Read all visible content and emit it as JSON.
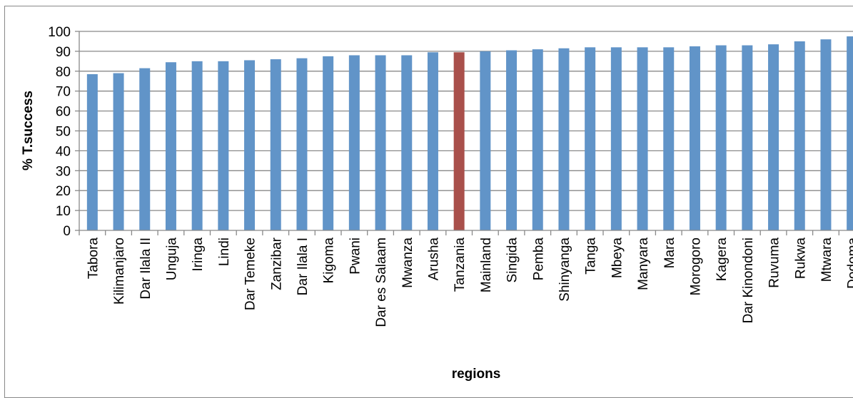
{
  "chart_data": {
    "type": "bar",
    "title": "",
    "xlabel": "regions",
    "ylabel": "% T.success",
    "ylim": [
      0,
      100
    ],
    "yticks": [
      0,
      10,
      20,
      30,
      40,
      50,
      60,
      70,
      80,
      90,
      100
    ],
    "grid": true,
    "legend": "none",
    "colors": {
      "default": "#6194C8",
      "highlight": "#A9504B",
      "grid": "#898989",
      "axis": "#898989"
    },
    "highlight_category": "Tanzania",
    "categories": [
      "Tabora",
      "Kilimanjaro",
      "Dar Ilala II",
      "Unguja",
      "Iringa",
      "Lindi",
      "Dar Temeke",
      "Zanzibar",
      "Dar Ilala I",
      "Kigoma",
      "Pwani",
      "Dar es Salaam",
      "Mwanza",
      "Arusha",
      "Tanzania",
      "Mainland",
      "Singida",
      "Pemba",
      "Shinyanga",
      "Tanga",
      "Mbeya",
      "Manyara",
      "Mara",
      "Morogoro",
      "Kagera",
      "Dar Kinondoni",
      "Ruvuma",
      "Rukwa",
      "Mtwara",
      "Dodoma"
    ],
    "values": [
      78.5,
      79.0,
      81.5,
      84.5,
      85.0,
      85.0,
      85.5,
      86.0,
      86.5,
      87.5,
      88.0,
      88.0,
      88.0,
      89.5,
      89.5,
      90.0,
      90.5,
      91.0,
      91.5,
      92.0,
      92.0,
      92.0,
      92.0,
      92.5,
      93.0,
      93.0,
      93.5,
      95.0,
      96.0,
      97.5
    ]
  }
}
